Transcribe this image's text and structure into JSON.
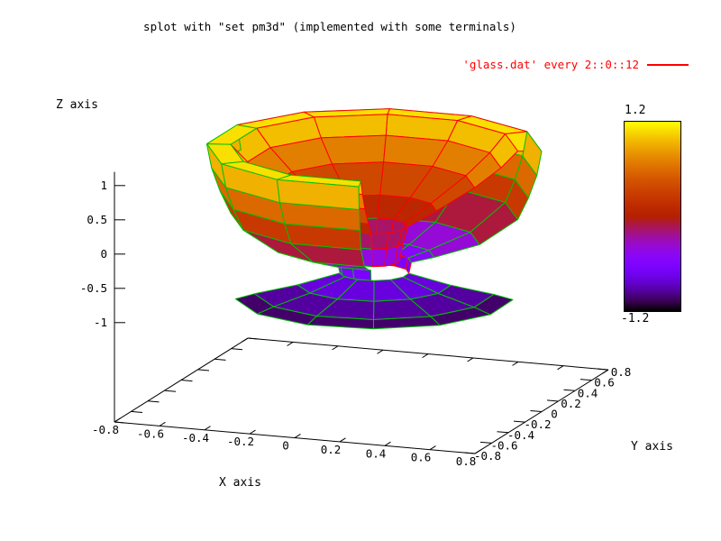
{
  "chart_data": {
    "type": "3d-surface",
    "title": "splot with \"set pm3d\" (implemented with some terminals)",
    "series": [
      {
        "name": "'glass.dat' every 2::0::12",
        "color": "#ff0000"
      }
    ],
    "x_axis": {
      "label": "X axis",
      "range": [
        -0.8,
        0.8
      ],
      "tick_values": [
        -0.8,
        -0.6,
        -0.4,
        -0.2,
        0,
        0.2,
        0.4,
        0.6,
        0.8
      ],
      "tick_labels": [
        "-0.8",
        "-0.6",
        "-0.4",
        "-0.2",
        "0",
        "0.2",
        "0.4",
        "0.6",
        "0.8"
      ]
    },
    "y_axis": {
      "label": "Y axis",
      "range": [
        -0.8,
        0.8
      ],
      "tick_values": [
        -0.8,
        -0.6,
        -0.4,
        -0.2,
        0,
        0.2,
        0.4,
        0.6,
        0.8
      ],
      "tick_labels": [
        "-0.8",
        "-0.6",
        "-0.4",
        "-0.2",
        "0",
        "0.2",
        "0.4",
        "0.6",
        "0.8"
      ]
    },
    "z_axis": {
      "label": "Z axis",
      "tick_values": [
        -1,
        -0.5,
        0,
        0.5,
        1
      ],
      "tick_labels": [
        "-1",
        "-0.5",
        "0",
        "0.5",
        "1"
      ]
    },
    "colorbox": {
      "cb_min": -1.2,
      "cb_max": 1.2,
      "max_label": "1.2",
      "min_label": "-1.2",
      "palette": "pm3d rgbformulae 7,5,15"
    },
    "mesh_colors": {
      "top": "#ff0000",
      "bottom": "#00c000"
    },
    "surface": {
      "center": [
        0.02,
        0.1
      ],
      "ranges": {
        "main": [
          15,
          285,
          9
        ],
        "stem": [
          15,
          375,
          12
        ],
        "base": [
          205,
          375,
          6
        ]
      },
      "profile": [
        [
          0.105,
          -0.55
        ],
        [
          0.12,
          -0.28
        ],
        [
          0.14,
          -0.04
        ],
        [
          0.26,
          0.2
        ],
        [
          0.42,
          0.55
        ],
        [
          0.53,
          0.85
        ],
        [
          0.6,
          1.1
        ],
        [
          0.7,
          1.1
        ],
        [
          0.68,
          0.75
        ],
        [
          0.645,
          0.42
        ],
        [
          0.6,
          0.1
        ],
        [
          0.44,
          -0.28
        ],
        [
          0.25,
          -0.48
        ],
        [
          0.155,
          -0.56
        ],
        [
          0.145,
          -0.72
        ],
        [
          0.32,
          -0.88
        ],
        [
          0.5,
          -1.0
        ],
        [
          0.58,
          -1.07
        ]
      ],
      "bands": [
        {
          "range": "stem",
          "stroke": "splitX",
          "layer": 0
        },
        {
          "range": "stem",
          "stroke": "splitX",
          "layer": 0
        },
        {
          "range": "main",
          "stroke": "red",
          "layer": 1
        },
        {
          "range": "main",
          "stroke": "red",
          "layer": 1
        },
        {
          "range": "main",
          "stroke": "red",
          "layer": 1
        },
        {
          "range": "main",
          "stroke": "red",
          "layer": 1
        },
        {
          "range": "main",
          "stroke": "splitY",
          "layer": 2
        },
        {
          "range": "main",
          "stroke": "green",
          "layer": 3
        },
        {
          "range": "main",
          "stroke": "green",
          "layer": 3
        },
        {
          "range": "main",
          "stroke": "green",
          "layer": 3
        },
        {
          "range": "main",
          "stroke": "green",
          "layer": 3
        },
        {
          "range": "main",
          "stroke": "green",
          "layer": 3
        },
        {
          "range": "main",
          "stroke": "green",
          "layer": 3
        },
        {
          "range": "main",
          "stroke": "splitX",
          "layer": 3
        },
        {
          "range": "base",
          "stroke": "green",
          "layer": 4
        },
        {
          "range": "base",
          "stroke": "green",
          "layer": 4
        },
        {
          "range": "base",
          "stroke": "green",
          "layer": 4
        }
      ]
    }
  },
  "view": {
    "ox": 127,
    "oy": 468,
    "ux": [
      250,
      21.9
    ],
    "uy": [
      92.5,
      -58.1
    ],
    "uz": 76,
    "zbase": -2.45,
    "border_color": "#000000",
    "bg": "#ffffff"
  }
}
